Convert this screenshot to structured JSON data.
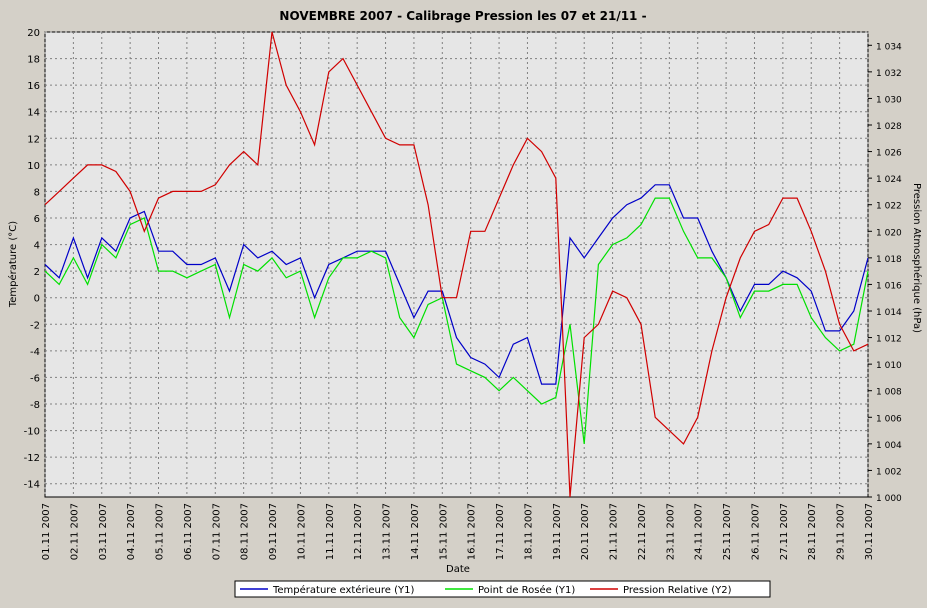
{
  "chart_data": {
    "type": "line",
    "title": "NOVEMBRE  2007  -  Calibrage  Pression   les 07 et 21/11  -",
    "x_label": "Date",
    "y_label": "Température (°C)",
    "y2_label": "Pression Atmosphérique (hPa)",
    "x": [
      1,
      1.5,
      2,
      2.5,
      3,
      3.5,
      4,
      4.5,
      5,
      5.5,
      6,
      6.5,
      7,
      7.5,
      8,
      8.5,
      9,
      9.5,
      10,
      10.5,
      11,
      11.5,
      12,
      12.5,
      13,
      13.5,
      14,
      14.5,
      15,
      15.5,
      16,
      16.5,
      17,
      17.5,
      18,
      18.5,
      19,
      19.5,
      20,
      20.5,
      21,
      21.5,
      22,
      22.5,
      23,
      23.5,
      24,
      24.5,
      25,
      25.5,
      26,
      26.5,
      27,
      27.5,
      28,
      28.5,
      29,
      29.5,
      30
    ],
    "xlim": [
      1,
      30
    ],
    "xticks": [
      {
        "value": 1,
        "label": "01.11 2007"
      },
      {
        "value": 2,
        "label": "02.11 2007"
      },
      {
        "value": 3,
        "label": "03.11 2007"
      },
      {
        "value": 4,
        "label": "04.11 2007"
      },
      {
        "value": 5,
        "label": "05.11 2007"
      },
      {
        "value": 6,
        "label": "06.11 2007"
      },
      {
        "value": 7,
        "label": "07.11 2007"
      },
      {
        "value": 8,
        "label": "08.11 2007"
      },
      {
        "value": 9,
        "label": "09.11 2007"
      },
      {
        "value": 10,
        "label": "10.11 2007"
      },
      {
        "value": 11,
        "label": "11.11 2007"
      },
      {
        "value": 12,
        "label": "12.11 2007"
      },
      {
        "value": 13,
        "label": "13.11 2007"
      },
      {
        "value": 14,
        "label": "14.11 2007"
      },
      {
        "value": 15,
        "label": "15.11 2007"
      },
      {
        "value": 16,
        "label": "16.11 2007"
      },
      {
        "value": 17,
        "label": "17.11 2007"
      },
      {
        "value": 18,
        "label": "18.11 2007"
      },
      {
        "value": 19,
        "label": "19.11 2007"
      },
      {
        "value": 20,
        "label": "20.11 2007"
      },
      {
        "value": 21,
        "label": "21.11 2007"
      },
      {
        "value": 22,
        "label": "22.11 2007"
      },
      {
        "value": 23,
        "label": "23.11 2007"
      },
      {
        "value": 24,
        "label": "24.11 2007"
      },
      {
        "value": 25,
        "label": "25.11 2007"
      },
      {
        "value": 26,
        "label": "26.11 2007"
      },
      {
        "value": 27,
        "label": "27.11 2007"
      },
      {
        "value": 28,
        "label": "28.11 2007"
      },
      {
        "value": 29,
        "label": "29.11 2007"
      },
      {
        "value": 30,
        "label": "30.11 2007"
      }
    ],
    "ylim": [
      -15,
      20
    ],
    "yticks": [
      -14,
      -12,
      -10,
      -8,
      -6,
      -4,
      -2,
      0,
      2,
      4,
      6,
      8,
      10,
      12,
      14,
      16,
      18,
      20
    ],
    "y2lim": [
      1000,
      1035
    ],
    "y2ticks": [
      {
        "value": 1000,
        "label": "1 000"
      },
      {
        "value": 1002,
        "label": "1 002"
      },
      {
        "value": 1004,
        "label": "1 004"
      },
      {
        "value": 1006,
        "label": "1 006"
      },
      {
        "value": 1008,
        "label": "1 008"
      },
      {
        "value": 1010,
        "label": "1 010"
      },
      {
        "value": 1012,
        "label": "1 012"
      },
      {
        "value": 1014,
        "label": "1 014"
      },
      {
        "value": 1016,
        "label": "1 016"
      },
      {
        "value": 1018,
        "label": "1 018"
      },
      {
        "value": 1020,
        "label": "1 020"
      },
      {
        "value": 1022,
        "label": "1 022"
      },
      {
        "value": 1024,
        "label": "1 024"
      },
      {
        "value": 1026,
        "label": "1 026"
      },
      {
        "value": 1028,
        "label": "1 028"
      },
      {
        "value": 1030,
        "label": "1 030"
      },
      {
        "value": 1032,
        "label": "1 032"
      },
      {
        "value": 1034,
        "label": "1 034"
      }
    ],
    "grid": true,
    "series": [
      {
        "name": "Température extérieure (Y1)",
        "color": "#0000c8",
        "values": [
          2.5,
          1.5,
          4.5,
          1.5,
          4.5,
          3.5,
          6,
          6.5,
          3.5,
          3.5,
          2.5,
          2.5,
          3,
          0.5,
          4,
          3,
          3.5,
          2.5,
          3,
          0,
          2.5,
          3,
          3.5,
          3.5,
          3.5,
          1,
          -1.5,
          0.5,
          0.5,
          -3,
          -4.5,
          -5,
          -6,
          -3.5,
          -3,
          -6.5,
          -6.5,
          4.5,
          3,
          4.5,
          6,
          7,
          7.5,
          8.5,
          8.5,
          6,
          6,
          3.5,
          1.5,
          -1,
          1,
          1,
          2,
          1.5,
          0.5,
          -2.5,
          -2.5,
          -1,
          3
        ]
      },
      {
        "name": "Point de Rosée (Y1)",
        "color": "#00e000",
        "values": [
          2,
          1,
          3,
          1,
          4,
          3,
          5.5,
          6,
          2,
          2,
          1.5,
          2,
          2.5,
          -1.5,
          2.5,
          2,
          3,
          1.5,
          2,
          -1.5,
          1.5,
          3,
          3,
          3.5,
          3,
          -1.5,
          -3,
          -0.5,
          0,
          -5,
          -5.5,
          -6,
          -7,
          -6,
          -7,
          -8,
          -7.5,
          -2,
          -11,
          2.5,
          4,
          4.5,
          5.5,
          7.5,
          7.5,
          5,
          3,
          3,
          1.5,
          -1.5,
          0.5,
          0.5,
          1,
          1,
          -1.5,
          -3,
          -4,
          -3.5,
          2
        ]
      },
      {
        "name": "Pression Relative (Y2)",
        "color": "#d00000",
        "axis": "y2",
        "values": [
          1022,
          1023,
          1024,
          1025,
          1025,
          1024.5,
          1023,
          1020,
          1022.5,
          1023,
          1023,
          1023,
          1023.5,
          1025,
          1026,
          1025,
          1035,
          1031,
          1029,
          1026.5,
          1032,
          1033,
          1031,
          1029,
          1027,
          1026.5,
          1026.5,
          1022,
          1015,
          1015,
          1020,
          1020,
          1022.5,
          1025,
          1027,
          1026,
          1024,
          1000,
          1012,
          1013,
          1015.5,
          1015,
          1013,
          1006,
          1005,
          1004,
          1006,
          1011,
          1015,
          1018,
          1020,
          1020.5,
          1022.5,
          1022.5,
          1020,
          1017,
          1013,
          1011,
          1011.5
        ]
      }
    ]
  }
}
